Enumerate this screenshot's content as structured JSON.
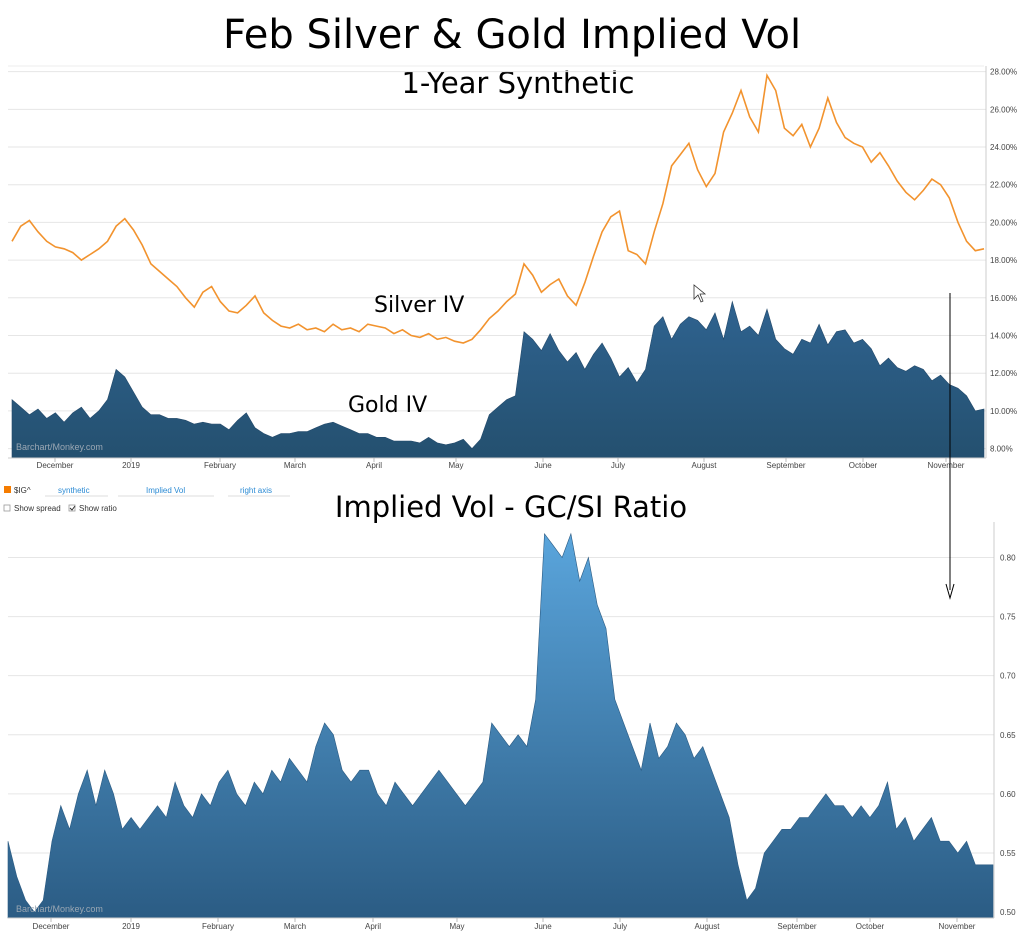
{
  "title": "Feb Silver & Gold Implied Vol",
  "subtitle": "1-Year Synthetic",
  "annotations": {
    "silver": "Silver IV",
    "gold": "Gold IV"
  },
  "controls": {
    "symbol": "$IG^",
    "field1": "synthetic",
    "field2": "Implied Vol",
    "field3": "right axis",
    "show_spread": "Show spread",
    "show_ratio": "Show ratio",
    "show_spread_checked": false,
    "show_ratio_checked": true
  },
  "watermark": "Barchart/Monkey.com",
  "colors": {
    "silver": "#f2932e",
    "gold_area": "#2b5c84",
    "ratio_top": "#5aa5dc",
    "ratio_bottom": "#2b5c84",
    "symbol_box": "#f57c00"
  },
  "chart_data": [
    {
      "type": "line+area",
      "title": "Feb Silver & Gold Implied Vol",
      "subtitle": "1-Year Synthetic",
      "x_labels": [
        "December",
        "2019",
        "February",
        "March",
        "April",
        "May",
        "June",
        "July",
        "August",
        "September",
        "October",
        "November"
      ],
      "y_ticks": [
        "8.00%",
        "10.00%",
        "12.00%",
        "14.00%",
        "16.00%",
        "18.00%",
        "20.00%",
        "22.00%",
        "24.00%",
        "26.00%",
        "28.00%"
      ],
      "ylim": [
        7.5,
        28.3
      ],
      "series": [
        {
          "name": "Silver IV",
          "type": "line",
          "values": [
            19.0,
            19.8,
            20.1,
            19.5,
            19.0,
            18.7,
            18.6,
            18.4,
            18.0,
            18.3,
            18.6,
            19.0,
            19.8,
            20.2,
            19.6,
            18.8,
            17.8,
            17.4,
            17.0,
            16.6,
            16.0,
            15.5,
            16.3,
            16.6,
            15.8,
            15.3,
            15.2,
            15.6,
            16.1,
            15.2,
            14.8,
            14.5,
            14.4,
            14.6,
            14.3,
            14.4,
            14.2,
            14.6,
            14.3,
            14.4,
            14.2,
            14.6,
            14.5,
            14.4,
            14.1,
            14.3,
            14.0,
            13.9,
            14.1,
            13.8,
            13.9,
            13.7,
            13.6,
            13.8,
            14.3,
            14.9,
            15.3,
            15.8,
            16.2,
            17.8,
            17.2,
            16.3,
            16.7,
            17.0,
            16.1,
            15.6,
            16.8,
            18.2,
            19.5,
            20.3,
            20.6,
            18.5,
            18.3,
            17.8,
            19.5,
            21.0,
            23.0,
            23.6,
            24.2,
            22.8,
            21.9,
            22.6,
            24.8,
            25.8,
            27.0,
            25.6,
            24.8,
            27.8,
            27.0,
            25.0,
            24.6,
            25.2,
            24.0,
            25.0,
            26.6,
            25.3,
            24.5,
            24.2,
            24.0,
            23.2,
            23.7,
            23.0,
            22.2,
            21.6,
            21.2,
            21.7,
            22.3,
            22.0,
            21.3,
            20.0,
            19.0,
            18.5,
            18.6
          ]
        },
        {
          "name": "Gold IV",
          "type": "area",
          "values": [
            10.6,
            10.2,
            9.8,
            10.1,
            9.6,
            9.9,
            9.4,
            9.9,
            10.2,
            9.6,
            10.0,
            10.6,
            12.2,
            11.8,
            11.0,
            10.2,
            9.8,
            9.8,
            9.6,
            9.6,
            9.5,
            9.3,
            9.4,
            9.3,
            9.3,
            9.0,
            9.5,
            9.9,
            9.1,
            8.8,
            8.6,
            8.8,
            8.8,
            8.9,
            8.9,
            9.1,
            9.3,
            9.4,
            9.2,
            9.0,
            8.8,
            8.8,
            8.6,
            8.6,
            8.4,
            8.4,
            8.4,
            8.3,
            8.6,
            8.3,
            8.2,
            8.3,
            8.5,
            8.0,
            8.5,
            9.8,
            10.2,
            10.6,
            10.8,
            14.2,
            13.8,
            13.2,
            14.1,
            13.2,
            12.6,
            13.1,
            12.2,
            13.0,
            13.6,
            12.8,
            11.8,
            12.3,
            11.5,
            12.2,
            14.5,
            15.0,
            13.8,
            14.6,
            15.0,
            14.8,
            14.3,
            15.2,
            13.8,
            15.8,
            14.2,
            14.5,
            14.0,
            15.4,
            13.8,
            13.3,
            13.0,
            13.8,
            13.6,
            14.6,
            13.5,
            14.2,
            14.3,
            13.6,
            13.8,
            13.3,
            12.4,
            12.8,
            12.3,
            12.1,
            12.4,
            12.2,
            11.6,
            11.9,
            11.4,
            11.2,
            10.8,
            10.0,
            10.1
          ]
        }
      ]
    },
    {
      "type": "area",
      "title": "Implied Vol - GC/SI Ratio",
      "x_labels": [
        "December",
        "2019",
        "February",
        "March",
        "April",
        "May",
        "June",
        "July",
        "August",
        "September",
        "October",
        "November"
      ],
      "y_ticks": [
        "0.50",
        "0.55",
        "0.60",
        "0.65",
        "0.70",
        "0.75",
        "0.80"
      ],
      "ylim": [
        0.495,
        0.83
      ],
      "series": [
        {
          "name": "GC/SI Ratio",
          "values": [
            0.56,
            0.53,
            0.51,
            0.5,
            0.51,
            0.56,
            0.59,
            0.57,
            0.6,
            0.62,
            0.59,
            0.62,
            0.6,
            0.57,
            0.58,
            0.57,
            0.58,
            0.59,
            0.58,
            0.61,
            0.59,
            0.58,
            0.6,
            0.59,
            0.61,
            0.62,
            0.6,
            0.59,
            0.61,
            0.6,
            0.62,
            0.61,
            0.63,
            0.62,
            0.61,
            0.64,
            0.66,
            0.65,
            0.62,
            0.61,
            0.62,
            0.62,
            0.6,
            0.59,
            0.61,
            0.6,
            0.59,
            0.6,
            0.61,
            0.62,
            0.61,
            0.6,
            0.59,
            0.6,
            0.61,
            0.66,
            0.65,
            0.64,
            0.65,
            0.64,
            0.68,
            0.82,
            0.81,
            0.8,
            0.82,
            0.78,
            0.8,
            0.76,
            0.74,
            0.68,
            0.66,
            0.64,
            0.62,
            0.66,
            0.63,
            0.64,
            0.66,
            0.65,
            0.63,
            0.64,
            0.62,
            0.6,
            0.58,
            0.54,
            0.51,
            0.52,
            0.55,
            0.56,
            0.57,
            0.57,
            0.58,
            0.58,
            0.59,
            0.6,
            0.59,
            0.59,
            0.58,
            0.59,
            0.58,
            0.59,
            0.61,
            0.57,
            0.58,
            0.56,
            0.57,
            0.58,
            0.56,
            0.56,
            0.55,
            0.56,
            0.54,
            0.54,
            0.54
          ]
        }
      ]
    }
  ]
}
